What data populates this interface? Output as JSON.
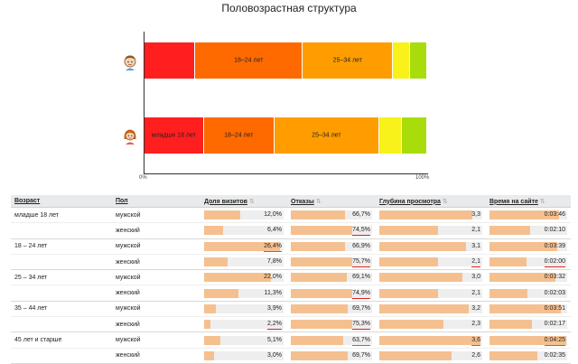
{
  "page": {
    "title": "Половозрастная структура"
  },
  "colors": {
    "age_under_18": "#ff1f1f",
    "age_18_24": "#ff6a00",
    "age_25_34": "#ff9d00",
    "age_35_44": "#f8f21a",
    "age_45_plus": "#a9dc0b",
    "bar_fill": "#f5c08f",
    "bar_track": "#eeeeee"
  },
  "chart_data": {
    "type": "bar",
    "orientation": "horizontal",
    "stacked": true,
    "normalized_percent": true,
    "xlim": [
      0,
      100
    ],
    "x_ticks": [
      "0%",
      "100%"
    ],
    "categories": [
      "male-icon",
      "female-icon"
    ],
    "series": [
      {
        "name": "младше 18 лет",
        "values": [
          18,
          21
        ]
      },
      {
        "name": "18–24 лет",
        "values": [
          38,
          25
        ]
      },
      {
        "name": "25–34 лет",
        "values": [
          32,
          37
        ]
      },
      {
        "name": "35–44 лет",
        "values": [
          6,
          8
        ]
      },
      {
        "name": "45 лет и старше",
        "values": [
          6,
          9
        ]
      }
    ],
    "segment_labels": [
      [
        "",
        "18–24 лет",
        "25–34 лет",
        "",
        ""
      ],
      [
        "младше 18 лет",
        "18–24 лет",
        "25–34 лет",
        "",
        ""
      ]
    ]
  },
  "table": {
    "headers": [
      {
        "label": "Возраст",
        "sortable": false
      },
      {
        "label": "Пол",
        "sortable": false
      },
      {
        "label": "Доля визитов",
        "sortable": true
      },
      {
        "label": "Отказы",
        "sortable": true
      },
      {
        "label": "Глубина просмотра",
        "sortable": true
      },
      {
        "label": "Время на сайте",
        "sortable": true
      }
    ],
    "rows": [
      {
        "age": "младше 18 лет",
        "sex": "мужской",
        "share": {
          "text": "12,0%",
          "frac": 0.46
        },
        "bounce": {
          "text": "66,7%",
          "frac": 0.67
        },
        "depth": {
          "text": "3,3",
          "frac": 0.9
        },
        "time": {
          "text": "0:03:46",
          "frac": 0.9
        }
      },
      {
        "age": "",
        "sex": "женский",
        "share": {
          "text": "6,4%",
          "frac": 0.24
        },
        "bounce": {
          "text": "74,5%",
          "frac": 0.75,
          "mark": "red"
        },
        "depth": {
          "text": "2,1",
          "frac": 0.57
        },
        "time": {
          "text": "0:02:10",
          "frac": 0.52
        }
      },
      {
        "age": "18 – 24 лет",
        "sex": "мужской",
        "share": {
          "text": "26,4%",
          "frac": 0.95,
          "mark": "green"
        },
        "bounce": {
          "text": "66,9%",
          "frac": 0.67
        },
        "depth": {
          "text": "3,1",
          "frac": 0.84
        },
        "time": {
          "text": "0:03:39",
          "frac": 0.87
        }
      },
      {
        "age": "",
        "sex": "женский",
        "share": {
          "text": "7,8%",
          "frac": 0.3
        },
        "bounce": {
          "text": "75,7%",
          "frac": 0.76,
          "mark": "red"
        },
        "depth": {
          "text": "2,1",
          "frac": 0.57,
          "mark": "red"
        },
        "time": {
          "text": "0:02:00",
          "frac": 0.48,
          "mark": "red"
        }
      },
      {
        "age": "25 – 34 лет",
        "sex": "мужской",
        "share": {
          "text": "22,0%",
          "frac": 0.84
        },
        "bounce": {
          "text": "69,1%",
          "frac": 0.69
        },
        "depth": {
          "text": "3,0",
          "frac": 0.81
        },
        "time": {
          "text": "0:03:32",
          "frac": 0.85
        }
      },
      {
        "age": "",
        "sex": "женский",
        "share": {
          "text": "11,3%",
          "frac": 0.43
        },
        "bounce": {
          "text": "74,9%",
          "frac": 0.75,
          "mark": "red"
        },
        "depth": {
          "text": "2,1",
          "frac": 0.57
        },
        "time": {
          "text": "0:02:03",
          "frac": 0.49
        }
      },
      {
        "age": "35 – 44 лет",
        "sex": "мужской",
        "share": {
          "text": "3,9%",
          "frac": 0.15
        },
        "bounce": {
          "text": "69,7%",
          "frac": 0.7
        },
        "depth": {
          "text": "3,2",
          "frac": 0.87
        },
        "time": {
          "text": "0:03:51",
          "frac": 0.92
        }
      },
      {
        "age": "",
        "sex": "женский",
        "share": {
          "text": "2,2%",
          "frac": 0.08,
          "mark": "red"
        },
        "bounce": {
          "text": "75,3%",
          "frac": 0.75,
          "mark": "red"
        },
        "depth": {
          "text": "2,3",
          "frac": 0.62
        },
        "time": {
          "text": "0:02:17",
          "frac": 0.55
        }
      },
      {
        "age": "45 лет и старше",
        "sex": "мужской",
        "share": {
          "text": "5,1%",
          "frac": 0.2
        },
        "bounce": {
          "text": "63,7%",
          "frac": 0.64,
          "mark": "green"
        },
        "depth": {
          "text": "3,6",
          "frac": 0.98,
          "mark": "green"
        },
        "time": {
          "text": "0:04:25",
          "frac": 0.99,
          "mark": "green"
        }
      },
      {
        "age": "",
        "sex": "женский",
        "share": {
          "text": "3,0%",
          "frac": 0.12
        },
        "bounce": {
          "text": "69,7%",
          "frac": 0.7
        },
        "depth": {
          "text": "2,6",
          "frac": 0.7
        },
        "time": {
          "text": "0:02:35",
          "frac": 0.62
        }
      }
    ]
  }
}
